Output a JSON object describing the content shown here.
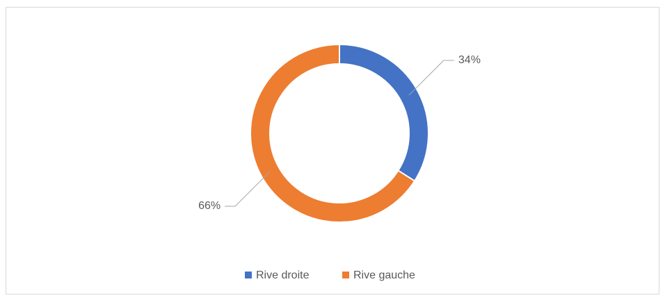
{
  "chart_data": {
    "type": "donut",
    "categories": [
      "Rive droite",
      "Rive gauche"
    ],
    "values": [
      34,
      66
    ],
    "value_labels": [
      "34%",
      "66%"
    ],
    "colors": [
      "#4472c4",
      "#ed7d31"
    ],
    "legend": "bottom"
  }
}
